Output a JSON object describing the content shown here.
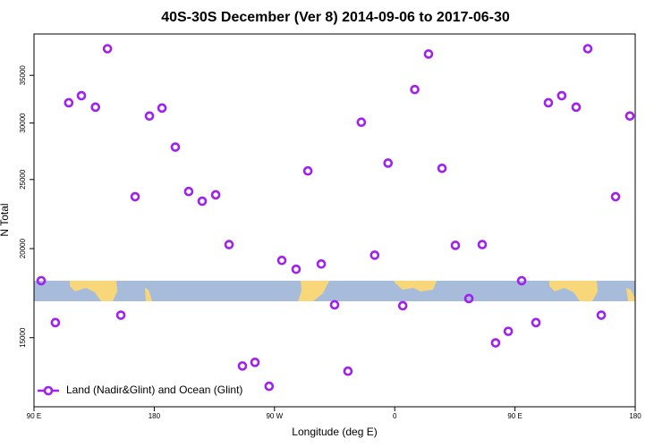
{
  "chart_data": {
    "type": "scatter",
    "title": "40S-30S December (Ver 8)   2014-09-06 to 2017-06-30",
    "x_label": "Longitude (deg E)",
    "y_label": "N Total",
    "xlim": [
      90,
      540
    ],
    "xticks": [
      {
        "value": 90,
        "label": "90 E"
      },
      180,
      {
        "value": 270,
        "label": "90 W"
      },
      {
        "value": 360,
        "label": "0"
      },
      {
        "value": 450,
        "label": "90 E"
      },
      {
        "value": 540,
        "label": "180"
      }
    ],
    "ylim": [
      12000,
      40000
    ],
    "y_log": true,
    "yticks": [
      15000,
      20000,
      25000,
      30000,
      35000
    ],
    "legend": "lower left",
    "series": [
      {
        "name": "Land (Nadir&Glint) and Ocean (Glint)",
        "color": "#a020f0",
        "x": [
          95.4,
          106,
          116,
          125.5,
          136,
          145,
          155,
          165.7,
          176.4,
          185.8,
          195.8,
          205.8,
          215.9,
          226,
          236,
          246,
          255.4,
          266,
          275.5,
          286.2,
          295,
          305,
          315,
          325,
          335,
          345,
          355,
          366,
          375,
          385.3,
          395.4,
          405.4,
          415.5,
          425.5,
          435.5,
          445,
          455,
          465.7,
          475,
          485,
          495.8,
          504.5,
          514.6,
          525.3,
          536
        ],
        "values": [
          18030,
          15750,
          32030,
          32770,
          31580,
          38140,
          16130,
          23650,
          30690,
          31490,
          27760,
          24050,
          23310,
          23790,
          20260,
          13690,
          13850,
          12820,
          19250,
          18710,
          25700,
          19030,
          16680,
          13460,
          30080,
          19580,
          26360,
          16630,
          33430,
          37490,
          25920,
          20210,
          17020,
          20260,
          14750,
          15310,
          18030,
          15750,
          32030,
          32770,
          31580,
          38140,
          16130,
          23650,
          30690
        ]
      }
    ]
  }
}
